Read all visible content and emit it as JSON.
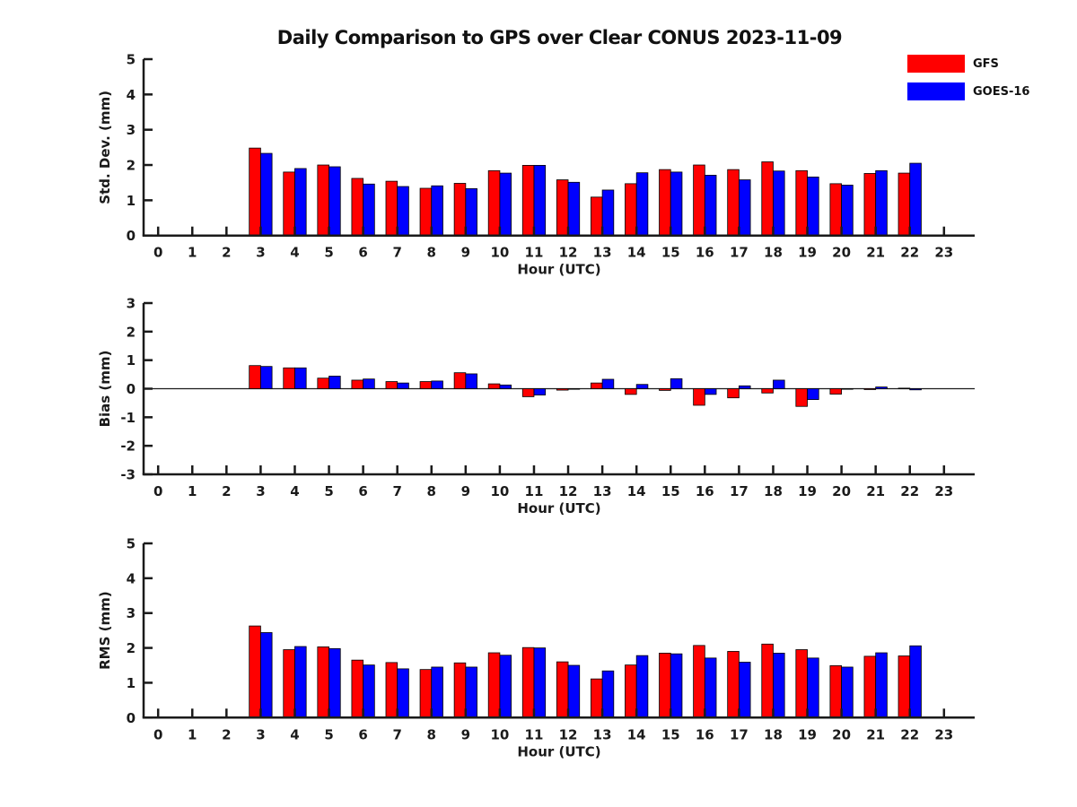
{
  "title": "Daily Comparison to GPS over Clear CONUS 2023-11-09",
  "legend": [
    {
      "label": "GFS",
      "color": "#ff0000"
    },
    {
      "label": "GOES-16",
      "color": "#0000ff"
    }
  ],
  "colors": {
    "gfs": "#ff0000",
    "goes16": "#0000ff",
    "axis": "#1a1a1a",
    "background": "#ffffff"
  },
  "chart_data": [
    {
      "type": "bar",
      "name": "std_dev",
      "xlabel": "Hour (UTC)",
      "ylabel": "Std. Dev. (mm)",
      "ylim": [
        0,
        5
      ],
      "yticks": [
        0,
        1,
        2,
        3,
        4,
        5
      ],
      "grid": false,
      "legend_position": "top-right",
      "categories": [
        0,
        1,
        2,
        3,
        4,
        5,
        6,
        7,
        8,
        9,
        10,
        11,
        12,
        13,
        14,
        15,
        16,
        17,
        18,
        19,
        20,
        21,
        22,
        23
      ],
      "series": [
        {
          "name": "GFS",
          "color": "#ff0000",
          "values": [
            null,
            null,
            null,
            2.48,
            1.8,
            2.0,
            1.62,
            1.54,
            1.34,
            1.48,
            1.84,
            1.99,
            1.58,
            1.09,
            1.47,
            1.87,
            2.0,
            1.87,
            2.09,
            1.84,
            1.47,
            1.76,
            1.77,
            null
          ]
        },
        {
          "name": "GOES-16",
          "color": "#0000ff",
          "values": [
            null,
            null,
            null,
            2.33,
            1.9,
            1.95,
            1.46,
            1.39,
            1.41,
            1.33,
            1.77,
            1.99,
            1.51,
            1.29,
            1.78,
            1.8,
            1.71,
            1.58,
            1.83,
            1.66,
            1.43,
            1.84,
            2.05,
            null
          ]
        }
      ]
    },
    {
      "type": "bar",
      "name": "bias",
      "xlabel": "Hour (UTC)",
      "ylabel": "Bias (mm)",
      "ylim": [
        -3,
        3
      ],
      "yticks": [
        -3,
        -2,
        -1,
        0,
        1,
        2,
        3
      ],
      "zero_line": true,
      "grid": false,
      "categories": [
        0,
        1,
        2,
        3,
        4,
        5,
        6,
        7,
        8,
        9,
        10,
        11,
        12,
        13,
        14,
        15,
        16,
        17,
        18,
        19,
        20,
        21,
        22,
        23
      ],
      "series": [
        {
          "name": "GFS",
          "color": "#ff0000",
          "values": [
            null,
            null,
            null,
            0.81,
            0.73,
            0.37,
            0.3,
            0.25,
            0.25,
            0.56,
            0.17,
            -0.28,
            -0.05,
            0.2,
            -0.2,
            -0.06,
            -0.58,
            -0.32,
            -0.15,
            -0.62,
            -0.19,
            -0.03,
            0.02,
            null
          ]
        },
        {
          "name": "GOES-16",
          "color": "#0000ff",
          "values": [
            null,
            null,
            null,
            0.78,
            0.73,
            0.44,
            0.34,
            0.2,
            0.27,
            0.52,
            0.13,
            -0.22,
            -0.02,
            0.33,
            0.15,
            0.35,
            -0.2,
            0.1,
            0.3,
            -0.38,
            -0.02,
            0.06,
            -0.04,
            null
          ]
        }
      ]
    },
    {
      "type": "bar",
      "name": "rms",
      "xlabel": "Hour (UTC)",
      "ylabel": "RMS (mm)",
      "ylim": [
        0,
        5
      ],
      "yticks": [
        0,
        1,
        2,
        3,
        4,
        5
      ],
      "grid": false,
      "categories": [
        0,
        1,
        2,
        3,
        4,
        5,
        6,
        7,
        8,
        9,
        10,
        11,
        12,
        13,
        14,
        15,
        16,
        17,
        18,
        19,
        20,
        21,
        22,
        23
      ],
      "series": [
        {
          "name": "GFS",
          "color": "#ff0000",
          "values": [
            null,
            null,
            null,
            2.63,
            1.95,
            2.03,
            1.65,
            1.58,
            1.38,
            1.57,
            1.86,
            2.01,
            1.6,
            1.11,
            1.51,
            1.85,
            2.07,
            1.9,
            2.11,
            1.95,
            1.49,
            1.76,
            1.77,
            null
          ]
        },
        {
          "name": "GOES-16",
          "color": "#0000ff",
          "values": [
            null,
            null,
            null,
            2.44,
            2.04,
            1.98,
            1.51,
            1.4,
            1.45,
            1.45,
            1.79,
            2.0,
            1.5,
            1.34,
            1.78,
            1.83,
            1.71,
            1.59,
            1.85,
            1.71,
            1.45,
            1.86,
            2.06,
            null
          ]
        }
      ]
    }
  ]
}
